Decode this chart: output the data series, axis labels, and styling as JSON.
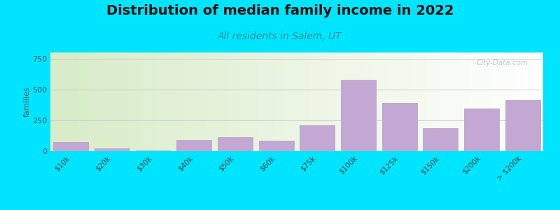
{
  "title": "Distribution of median family income in 2022",
  "subtitle": "All residents in Salem, UT",
  "ylabel": "families",
  "categories": [
    "$10k",
    "$20k",
    "$30k",
    "$40k",
    "$50k",
    "$60k",
    "$75k",
    "$100k",
    "$125k",
    "$150k",
    "$200k",
    "> $200k"
  ],
  "values": [
    75,
    25,
    5,
    90,
    115,
    85,
    210,
    580,
    390,
    185,
    345,
    415
  ],
  "bar_color": "#c4a8d4",
  "bar_edge_color": "#b898c8",
  "background_outer": "#00e5ff",
  "gradient_left": "#d8ecc8",
  "gradient_right": "#ffffff",
  "title_fontsize": 14,
  "subtitle_fontsize": 10,
  "subtitle_color": "#2a9090",
  "ylabel_fontsize": 8,
  "yticks": [
    0,
    250,
    500,
    750
  ],
  "ylim": [
    0,
    800
  ],
  "watermark_text": "City-Data.com",
  "watermark_color": "#b0c8c8"
}
